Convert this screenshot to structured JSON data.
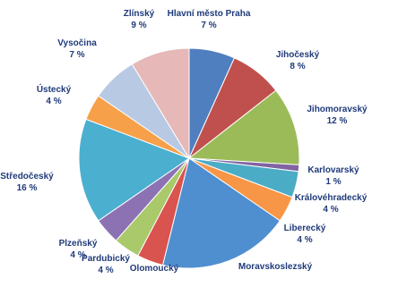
{
  "chart_data": {
    "type": "pie",
    "title": "",
    "slices": [
      {
        "name": "Hlavní město Praha",
        "value": 7,
        "value_label": "7 %",
        "color": "#4f7fbf"
      },
      {
        "name": "Jihočeský",
        "value": 8,
        "value_label": "8 %",
        "color": "#c0504d"
      },
      {
        "name": "Jihomoravský",
        "value": 12,
        "value_label": "12 %",
        "color": "#9bbb59"
      },
      {
        "name": "Karlovarský",
        "value": 1,
        "value_label": "1 %",
        "color": "#8064a2"
      },
      {
        "name": "Královéhradecký",
        "value": 4,
        "value_label": "4 %",
        "color": "#4bacc6"
      },
      {
        "name": "Liberecký",
        "value": 4,
        "value_label": "4 %",
        "color": "#f79646"
      },
      {
        "name": "Moravskoslezský",
        "value": 20,
        "value_label": "",
        "color": "#4f8fd0"
      },
      {
        "name": "Olomoucký",
        "value": 4,
        "value_label": "",
        "color": "#d9534f"
      },
      {
        "name": "Pardubický",
        "value": 4,
        "value_label": "4 %",
        "color": "#a9c96a"
      },
      {
        "name": "Plzeňský",
        "value": 4,
        "value_label": "4 %",
        "color": "#8c72b3"
      },
      {
        "name": "Středočeský",
        "value": 16,
        "value_label": "16 %",
        "color": "#4bafd0"
      },
      {
        "name": "Ústecký",
        "value": 4,
        "value_label": "4 %",
        "color": "#f7a04a"
      },
      {
        "name": "Vysočina",
        "value": 7,
        "value_label": "7 %",
        "color": "#b8c9e4"
      },
      {
        "name": "Zlínský",
        "value": 9,
        "value_label": "9 %",
        "color": "#e6b8b8"
      }
    ],
    "legend": "none",
    "labels": "outside slices (name and percent)"
  }
}
